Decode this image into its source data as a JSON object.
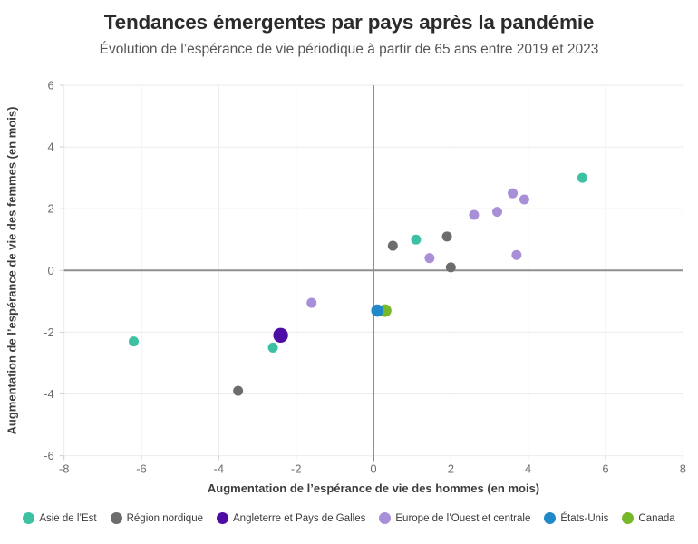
{
  "header": {
    "title": "Tendances émergentes par pays après la pandémie",
    "subtitle": "Évolution de l’espérance de vie périodique à partir de 65 ans entre 2019 et 2023"
  },
  "colors": {
    "background": "#ffffff",
    "title_text": "#2b2b2b",
    "subtitle_text": "#565656",
    "axis_title_text": "#3d3d3d",
    "tick_label_text": "#6e6e6e",
    "gridline": "#ebebeb",
    "zero_line": "#8f8f8f",
    "tick_mark": "#d0d0d0"
  },
  "chart_data": {
    "type": "scatter",
    "title": "Tendances émergentes par pays après la pandémie",
    "subtitle": "Évolution de l’espérance de vie périodique à partir de 65 ans entre 2019 et 2023",
    "xlabel": "Augmentation de l’espérance de vie des hommes (en mois)",
    "ylabel": "Augmentation de l’espérance de vie des femmes (en mois)",
    "xlim": [
      -8,
      8
    ],
    "ylim": [
      -6,
      6
    ],
    "xticks": [
      -8,
      -6,
      -4,
      -2,
      0,
      2,
      4,
      6,
      8
    ],
    "yticks": [
      -6,
      -4,
      -2,
      0,
      2,
      4,
      6
    ],
    "grid": true,
    "zero_lines": true,
    "legend_position": "bottom",
    "draw_order": [
      0,
      1,
      2,
      3,
      5,
      4
    ],
    "series": [
      {
        "name": "Asie de l’Est",
        "color": "#3cc1a2",
        "radius": 5.5,
        "points": [
          [
            5.4,
            3.0
          ],
          [
            1.1,
            1.0
          ],
          [
            -2.6,
            -2.5
          ],
          [
            -6.2,
            -2.3
          ]
        ]
      },
      {
        "name": "Région nordique",
        "color": "#6c6c6c",
        "radius": 5.5,
        "points": [
          [
            0.5,
            0.8
          ],
          [
            1.9,
            1.1
          ],
          [
            2.0,
            0.1
          ],
          [
            -3.5,
            -3.9
          ]
        ]
      },
      {
        "name": "Angleterre et Pays de Galles",
        "color": "#4d0da5",
        "radius": 8.2,
        "points": [
          [
            -2.4,
            -2.1
          ]
        ]
      },
      {
        "name": "Europe de l’Ouest et centrale",
        "color": "#a88fd8",
        "radius": 5.5,
        "points": [
          [
            3.6,
            2.5
          ],
          [
            3.9,
            2.3
          ],
          [
            3.2,
            1.9
          ],
          [
            2.6,
            1.8
          ],
          [
            3.7,
            0.5
          ],
          [
            1.45,
            0.4
          ],
          [
            -1.6,
            -1.05
          ]
        ]
      },
      {
        "name": "États-Unis",
        "color": "#2189c8",
        "radius": 6.8,
        "points": [
          [
            0.1,
            -1.3
          ]
        ]
      },
      {
        "name": "Canada",
        "color": "#76b82a",
        "radius": 7,
        "points": [
          [
            0.3,
            -1.3
          ]
        ]
      }
    ]
  }
}
